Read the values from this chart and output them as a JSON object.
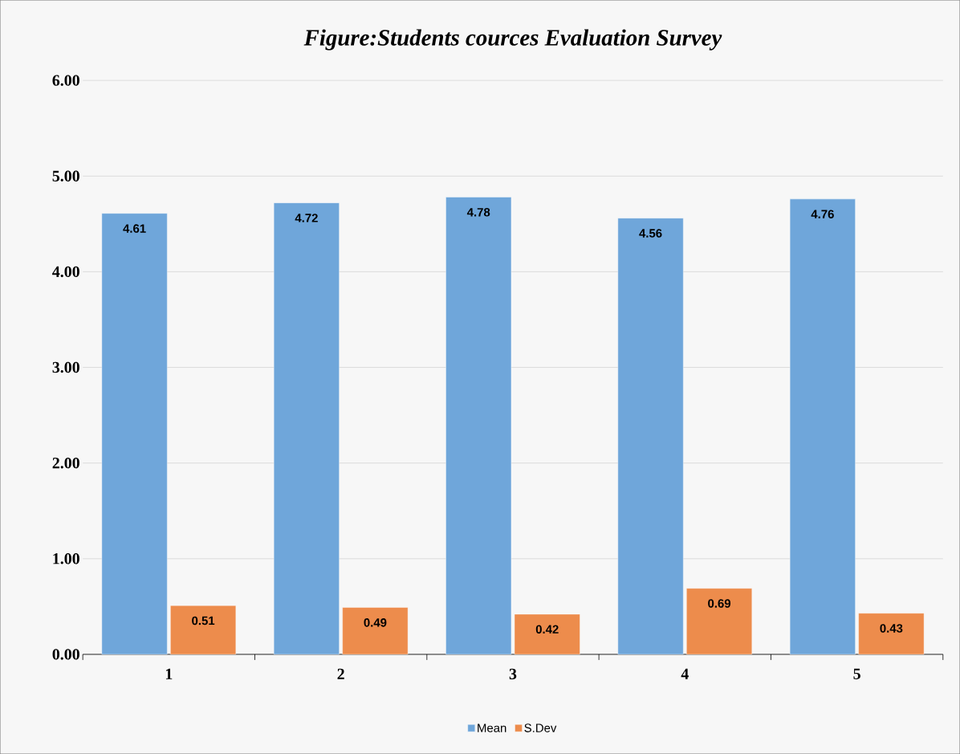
{
  "chart_data": {
    "type": "bar",
    "title": "Figure:Students cources Evaluation Survey",
    "categories": [
      "1",
      "2",
      "3",
      "4",
      "5"
    ],
    "series": [
      {
        "name": "Mean",
        "color": "#6fa6da",
        "values": [
          4.61,
          4.72,
          4.78,
          4.56,
          4.76
        ]
      },
      {
        "name": "S.Dev",
        "color": "#ed8c4c",
        "values": [
          0.51,
          0.49,
          0.42,
          0.69,
          0.43
        ]
      }
    ],
    "ylim": [
      0,
      6
    ],
    "yticks": [
      {
        "value": 0,
        "label": "0.00"
      },
      {
        "value": 1,
        "label": "1.00"
      },
      {
        "value": 2,
        "label": "2.00"
      },
      {
        "value": 3,
        "label": "3.00"
      },
      {
        "value": 4,
        "label": "4.00"
      },
      {
        "value": 5,
        "label": "5.00"
      },
      {
        "value": 6,
        "label": "6.00"
      }
    ],
    "grid": "y",
    "legend": "bottom",
    "data_labels": true
  }
}
